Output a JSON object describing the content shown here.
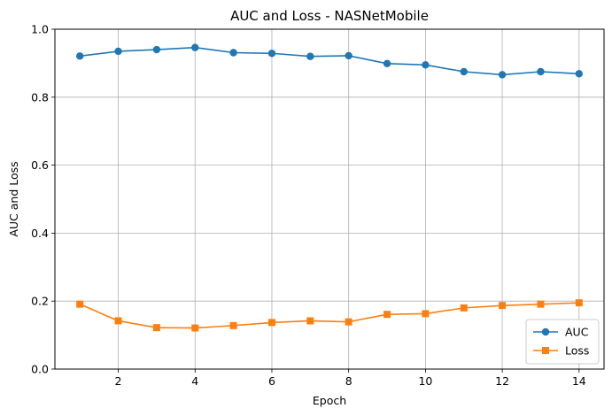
{
  "chart_data": {
    "type": "line",
    "title": "AUC and Loss - NASNetMobile",
    "xlabel": "Epoch",
    "ylabel": "AUC and Loss",
    "x": [
      1,
      2,
      3,
      4,
      5,
      6,
      7,
      8,
      9,
      10,
      11,
      12,
      13,
      14
    ],
    "xlim": [
      0.35,
      14.65
    ],
    "ylim": [
      0.0,
      1.0
    ],
    "xticks": [
      2,
      4,
      6,
      8,
      10,
      12,
      14
    ],
    "yticks": [
      0.0,
      0.2,
      0.4,
      0.6,
      0.8,
      1.0
    ],
    "xtick_labels": [
      "2",
      "4",
      "6",
      "8",
      "10",
      "12",
      "14"
    ],
    "ytick_labels": [
      "0.0",
      "0.2",
      "0.4",
      "0.6",
      "0.8",
      "1.0"
    ],
    "grid": true,
    "legend_position": "lower-right",
    "series": [
      {
        "name": "AUC",
        "color": "#1f77b4",
        "marker": "circle",
        "values": [
          0.921,
          0.935,
          0.94,
          0.946,
          0.931,
          0.929,
          0.92,
          0.922,
          0.899,
          0.895,
          0.875,
          0.866,
          0.875,
          0.869
        ]
      },
      {
        "name": "Loss",
        "color": "#ff7f0e",
        "marker": "square",
        "values": [
          0.191,
          0.142,
          0.122,
          0.121,
          0.128,
          0.137,
          0.142,
          0.139,
          0.161,
          0.163,
          0.18,
          0.187,
          0.191,
          0.195
        ]
      }
    ]
  }
}
